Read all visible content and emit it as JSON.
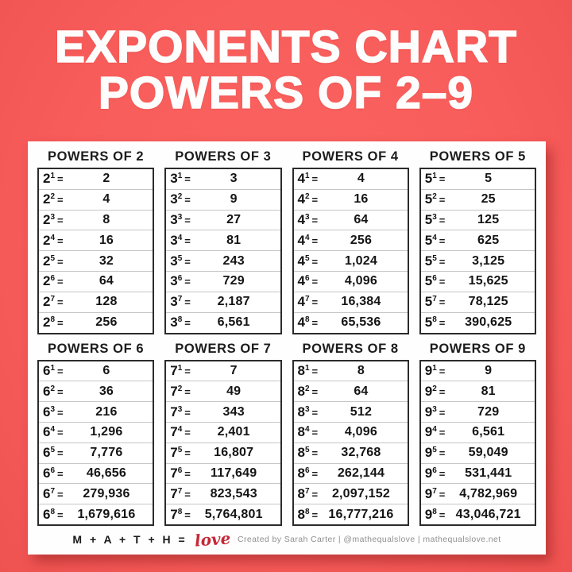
{
  "title": {
    "line1": "EXPONENTS CHART",
    "line2": "POWERS OF 2–9"
  },
  "equals_sign": "=",
  "chart_data": {
    "type": "table",
    "tables": [
      {
        "header": "POWERS OF 2",
        "base": "2",
        "exponents": [
          1,
          2,
          3,
          4,
          5,
          6,
          7,
          8
        ],
        "values": [
          "2",
          "4",
          "8",
          "16",
          "32",
          "64",
          "128",
          "256"
        ]
      },
      {
        "header": "POWERS OF 3",
        "base": "3",
        "exponents": [
          1,
          2,
          3,
          4,
          5,
          6,
          7,
          8
        ],
        "values": [
          "3",
          "9",
          "27",
          "81",
          "243",
          "729",
          "2,187",
          "6,561"
        ]
      },
      {
        "header": "POWERS OF 4",
        "base": "4",
        "exponents": [
          1,
          2,
          3,
          4,
          5,
          6,
          7,
          8
        ],
        "values": [
          "4",
          "16",
          "64",
          "256",
          "1,024",
          "4,096",
          "16,384",
          "65,536"
        ]
      },
      {
        "header": "POWERS OF 5",
        "base": "5",
        "exponents": [
          1,
          2,
          3,
          4,
          5,
          6,
          7,
          8
        ],
        "values": [
          "5",
          "25",
          "125",
          "625",
          "3,125",
          "15,625",
          "78,125",
          "390,625"
        ]
      },
      {
        "header": "POWERS OF 6",
        "base": "6",
        "exponents": [
          1,
          2,
          3,
          4,
          5,
          6,
          7,
          8
        ],
        "values": [
          "6",
          "36",
          "216",
          "1,296",
          "7,776",
          "46,656",
          "279,936",
          "1,679,616"
        ]
      },
      {
        "header": "POWERS OF 7",
        "base": "7",
        "exponents": [
          1,
          2,
          3,
          4,
          5,
          6,
          7,
          8
        ],
        "values": [
          "7",
          "49",
          "343",
          "2,401",
          "16,807",
          "117,649",
          "823,543",
          "5,764,801"
        ]
      },
      {
        "header": "POWERS OF 8",
        "base": "8",
        "exponents": [
          1,
          2,
          3,
          4,
          5,
          6,
          7,
          8
        ],
        "values": [
          "8",
          "64",
          "512",
          "4,096",
          "32,768",
          "262,144",
          "2,097,152",
          "16,777,216"
        ]
      },
      {
        "header": "POWERS OF 9",
        "base": "9",
        "exponents": [
          1,
          2,
          3,
          4,
          5,
          6,
          7,
          8
        ],
        "values": [
          "9",
          "81",
          "729",
          "6,561",
          "59,049",
          "531,441",
          "4,782,969",
          "43,046,721"
        ]
      }
    ]
  },
  "footer": {
    "logo_math": "M + A + T + H =",
    "logo_love": "love",
    "credit": "Created by Sarah Carter  |  @mathequalslove  | mathequalslove.net"
  },
  "colors": {
    "background_red": "#f85d5b",
    "title_white": "#fdfdfd",
    "card_white": "#fefefe",
    "table_text": "#141414",
    "table_border": "#2b2b2b",
    "row_divider": "#c6c6c6",
    "love_red": "#c62837",
    "credit_gray": "#8f8f8f"
  }
}
